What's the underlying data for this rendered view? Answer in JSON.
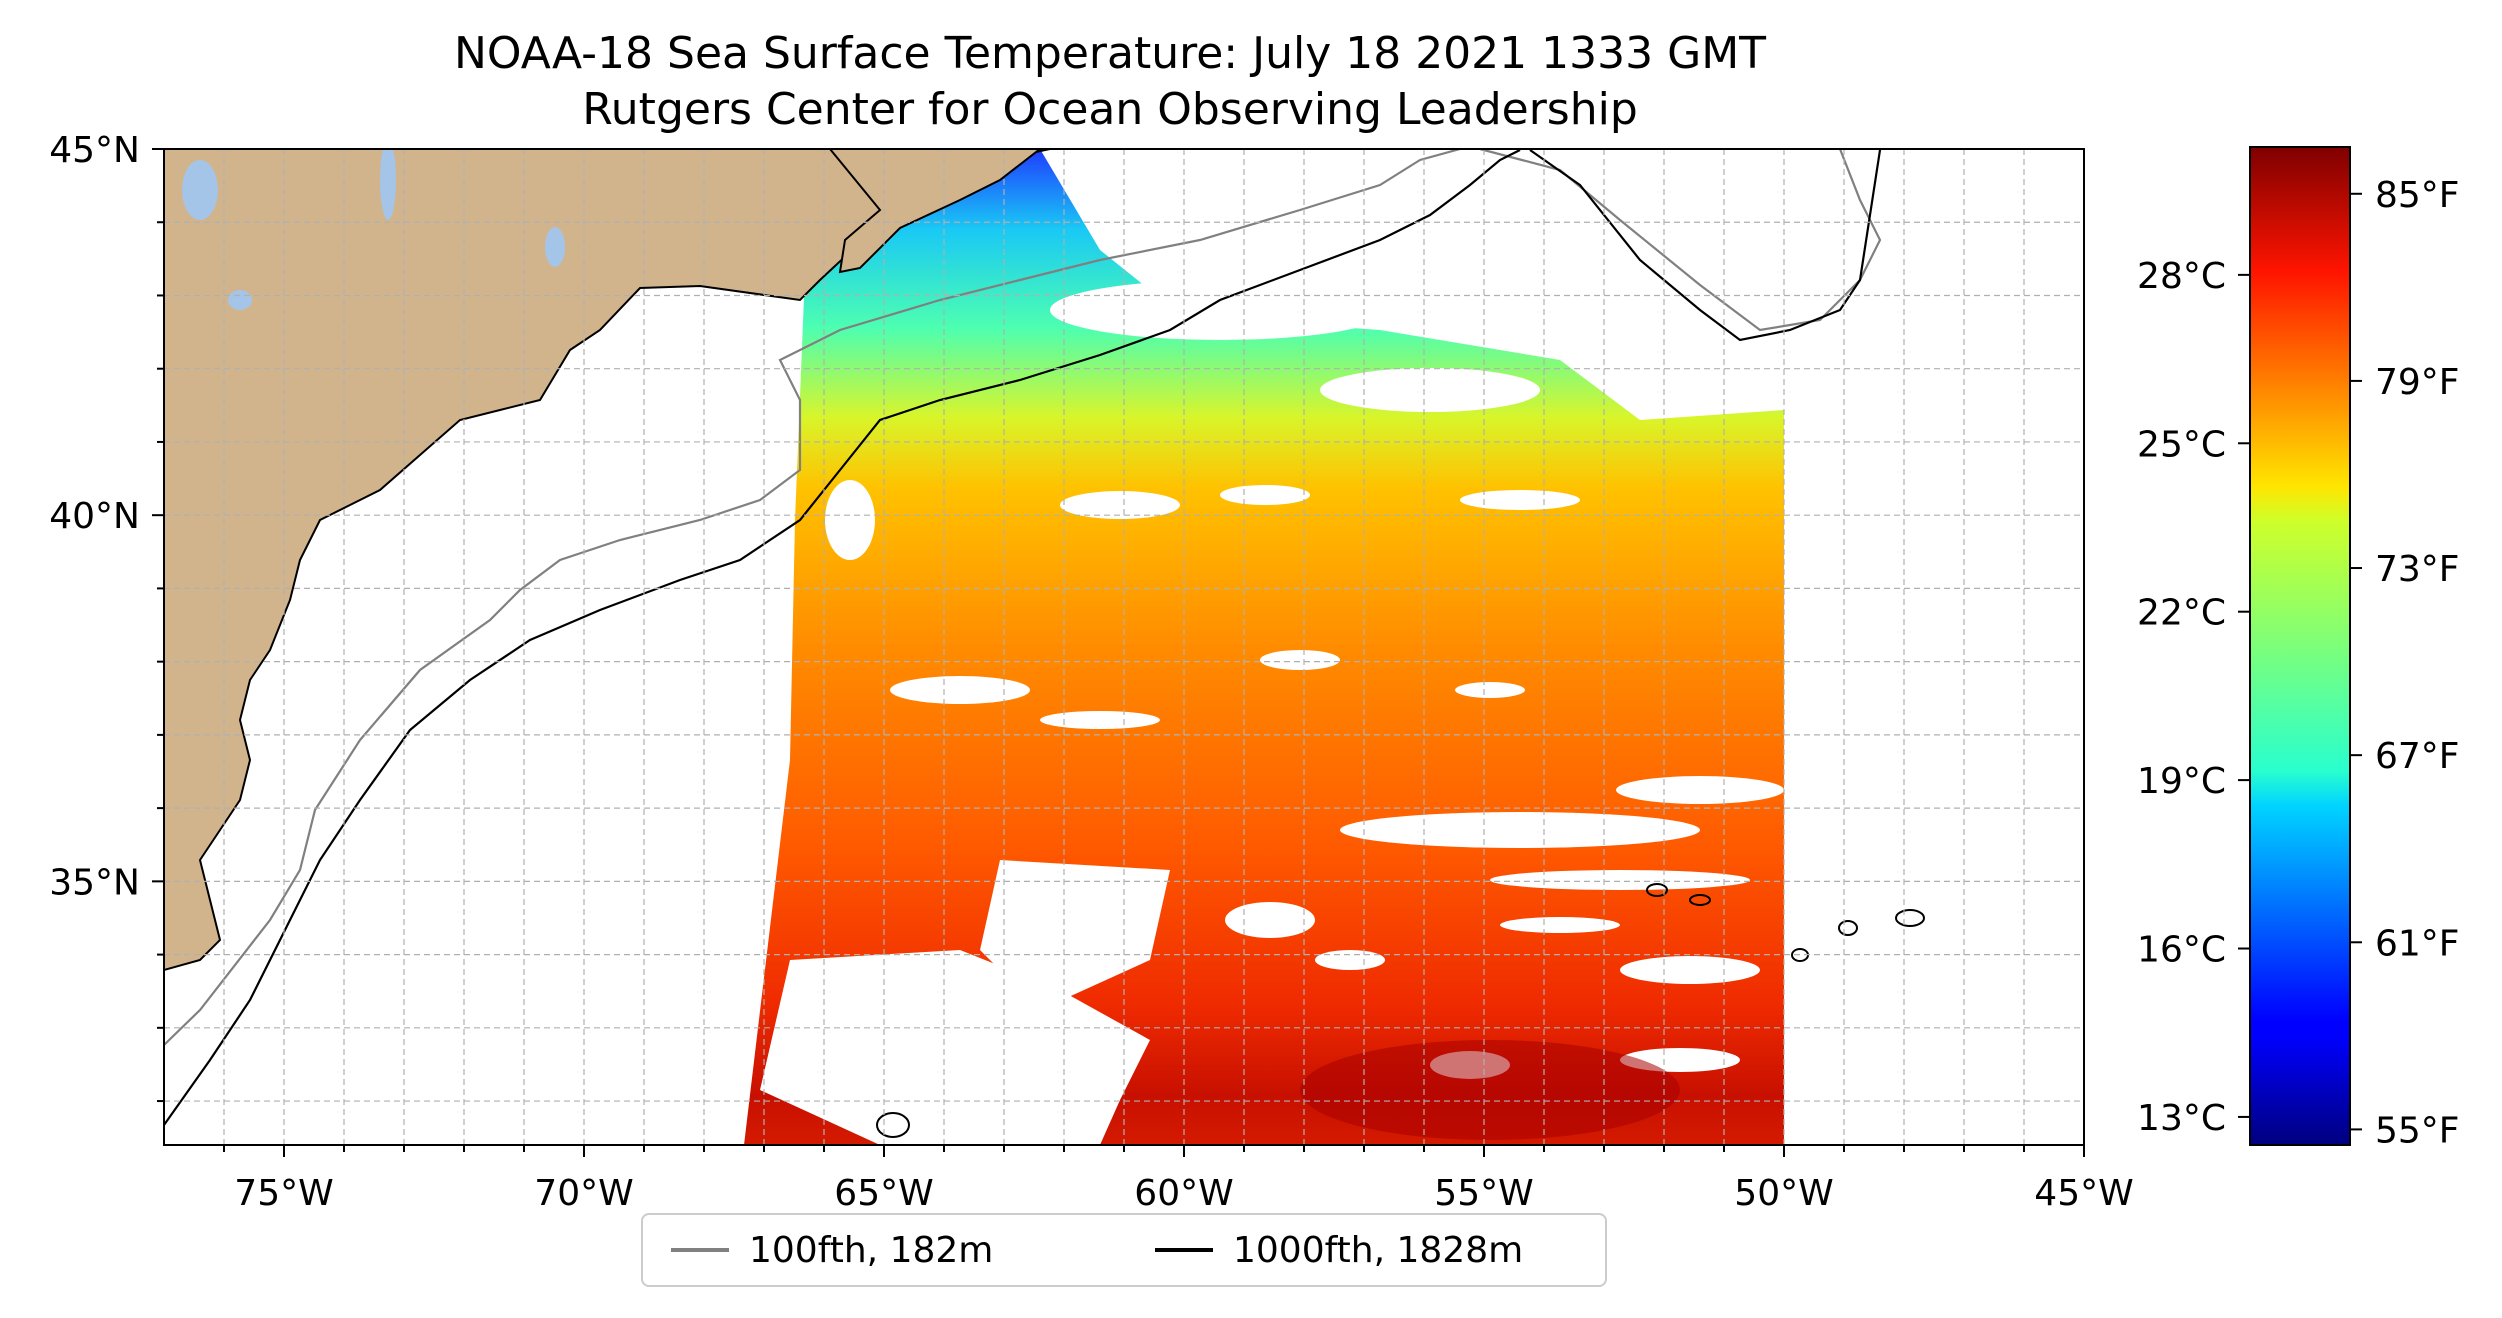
{
  "title": {
    "line1": "NOAA-18 Sea Surface Temperature: July 18 2021 1333 GMT",
    "line2": "Rutgers Center for Ocean Observing Leadership"
  },
  "map": {
    "lon_range": [
      -77,
      -45
    ],
    "lat_range": [
      31.4,
      45
    ],
    "lon_ticks": [
      {
        "value": -75,
        "label": "75°W"
      },
      {
        "value": -70,
        "label": "70°W"
      },
      {
        "value": -65,
        "label": "65°W"
      },
      {
        "value": -60,
        "label": "60°W"
      },
      {
        "value": -55,
        "label": "55°W"
      },
      {
        "value": -50,
        "label": "50°W"
      },
      {
        "value": -45,
        "label": "45°W"
      }
    ],
    "lat_ticks": [
      {
        "value": 45,
        "label": "45°N"
      },
      {
        "value": 40,
        "label": "40°N"
      },
      {
        "value": 35,
        "label": "35°N"
      }
    ],
    "gridlines": true,
    "land_color": "#d2b48c",
    "water_body_color": "#a4c4e8"
  },
  "legend": {
    "placement": "bottom-center",
    "items": [
      {
        "label": "100fth, 182m",
        "color": "#808080"
      },
      {
        "label": "1000fth, 1828m",
        "color": "#000000"
      }
    ]
  },
  "colorbar": {
    "colormap": "jet",
    "fahrenheit_range": [
      54.5,
      86.5
    ],
    "celsius_ticks": [
      {
        "value": 13,
        "label": "13°C"
      },
      {
        "value": 16,
        "label": "16°C"
      },
      {
        "value": 19,
        "label": "19°C"
      },
      {
        "value": 22,
        "label": "22°C"
      },
      {
        "value": 25,
        "label": "25°C"
      },
      {
        "value": 28,
        "label": "28°C"
      }
    ],
    "fahrenheit_ticks": [
      {
        "value": 55,
        "label": "55°F"
      },
      {
        "value": 61,
        "label": "61°F"
      },
      {
        "value": 67,
        "label": "67°F"
      },
      {
        "value": 73,
        "label": "73°F"
      },
      {
        "value": 79,
        "label": "79°F"
      },
      {
        "value": 85,
        "label": "85°F"
      }
    ]
  }
}
